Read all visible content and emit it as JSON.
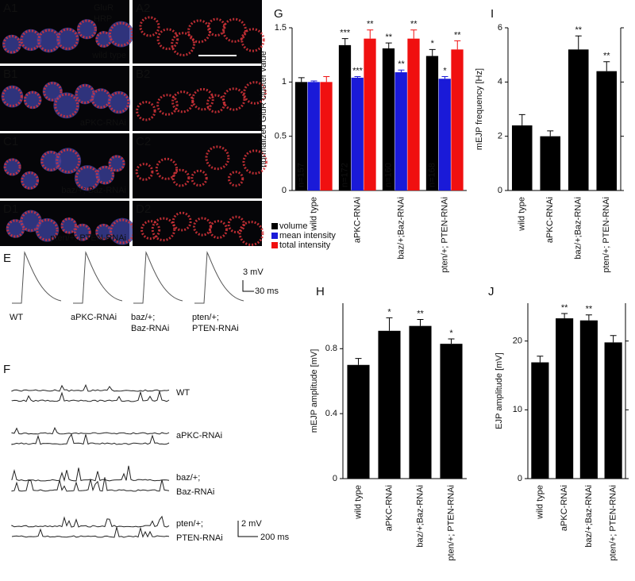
{
  "image_panels": [
    {
      "label": "A1",
      "caption": "wild type"
    },
    {
      "label": "A2"
    },
    {
      "label": "B1",
      "caption": "aPKC-RNAi"
    },
    {
      "label": "B2"
    },
    {
      "label": "C1",
      "caption": "baz/+; Baz-RNAi"
    },
    {
      "label": "C2"
    },
    {
      "label": "D1",
      "caption": "pten/+; PTEN-RNAi"
    },
    {
      "label": "D2"
    }
  ],
  "stain_legend": [
    "GluR",
    "HRP"
  ],
  "trace_panel_E": {
    "label": "E",
    "genotypes": [
      [
        "WT"
      ],
      [
        "aPKC-RNAi"
      ],
      [
        "baz/+;",
        "Baz-RNAi"
      ],
      [
        "pten/+;",
        "PTEN-RNAi"
      ]
    ],
    "scale": [
      "3 mV",
      "30 ms"
    ]
  },
  "trace_panel_F": {
    "label": "F",
    "genotypes": [
      [
        "WT"
      ],
      [
        "aPKC-RNAi"
      ],
      [
        "baz/+;",
        "Baz-RNAi"
      ],
      [
        "pten/+;",
        "PTEN-RNAi"
      ]
    ],
    "scale": [
      "2 mV",
      "200 ms"
    ]
  },
  "chart_data": [
    {
      "type": "bar",
      "panel_label": "G",
      "ylabel": "normalized GluR cluster value",
      "categories": [
        "wild type",
        "aPKC-RNAi",
        "baz/+;Baz-RNAi",
        "pten/+; PTEN-RNAi"
      ],
      "series": [
        {
          "name": "volume",
          "color": "#000000",
          "values": [
            1.0,
            1.34,
            1.31,
            1.24
          ],
          "errors": [
            0.04,
            0.06,
            0.05,
            0.06
          ],
          "annotations": [
            null,
            "***",
            "**",
            "*"
          ]
        },
        {
          "name": "mean intensity",
          "color": "#1a1ad8",
          "values": [
            1.0,
            1.04,
            1.09,
            1.03
          ],
          "errors": [
            0.01,
            0.01,
            0.02,
            0.02
          ],
          "annotations": [
            null,
            "***",
            "**",
            "*"
          ]
        },
        {
          "name": "total intensity",
          "color": "#f01010",
          "values": [
            1.0,
            1.4,
            1.4,
            1.3
          ],
          "errors": [
            0.05,
            0.08,
            0.08,
            0.08
          ],
          "annotations": [
            null,
            "**",
            "**",
            "**"
          ]
        }
      ],
      "n_labels": [
        "n=157",
        "n=172",
        "n=160",
        "n=168"
      ],
      "ylim": [
        0,
        1.5
      ],
      "yticks": [
        0,
        0.5,
        1,
        1.5
      ]
    },
    {
      "type": "bar",
      "panel_label": "H",
      "ylabel": "mEJP amplitude [mV]",
      "categories": [
        "wild type",
        "aPKC-RNAi",
        "baz/+;Baz-RNAi",
        "pten/+; PTEN-RNAi"
      ],
      "color": "#000000",
      "values": [
        0.7,
        0.91,
        0.94,
        0.83
      ],
      "errors": [
        0.04,
        0.08,
        0.04,
        0.03
      ],
      "annotations": [
        null,
        "*",
        "**",
        "*"
      ],
      "ylim": [
        0,
        1.08
      ],
      "yticks": [
        0,
        0.4,
        0.8
      ]
    },
    {
      "type": "bar",
      "panel_label": "I",
      "ylabel": "mEJP frequency [Hz]",
      "categories": [
        "wild type",
        "aPKC-RNAi",
        "baz/+;Baz-RNAi",
        "pten/+; PTEN-RNAi"
      ],
      "color": "#000000",
      "values": [
        2.4,
        2.0,
        5.2,
        4.4
      ],
      "errors": [
        0.4,
        0.2,
        0.5,
        0.35
      ],
      "annotations": [
        null,
        null,
        "**",
        "**"
      ],
      "ylim": [
        0,
        6
      ],
      "yticks": [
        0,
        2,
        4,
        6
      ]
    },
    {
      "type": "bar",
      "panel_label": "J",
      "ylabel": "EJP amplitude [mV]",
      "categories": [
        "wild type",
        "aPKC-RNAi",
        "baz/+;Baz-RNAi",
        "pten/+; PTEN-RNAi"
      ],
      "color": "#000000",
      "values": [
        16.9,
        23.3,
        23.0,
        19.8
      ],
      "errors": [
        0.9,
        0.7,
        0.8,
        1.0
      ],
      "annotations": [
        null,
        "**",
        "**",
        null
      ],
      "ylim": [
        0,
        25.5
      ],
      "yticks": [
        0,
        10,
        20
      ]
    }
  ]
}
